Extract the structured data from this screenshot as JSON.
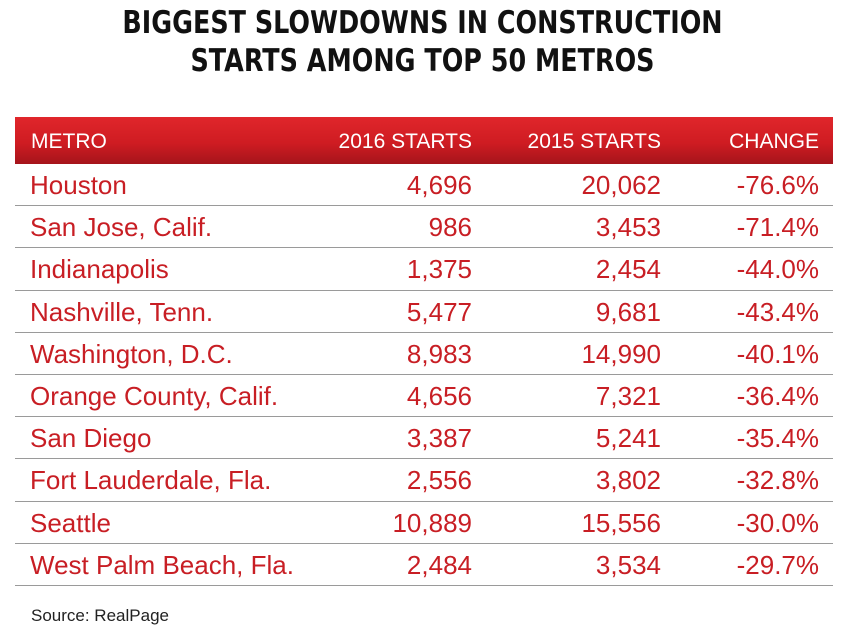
{
  "chart_data": {
    "type": "table",
    "title_lines": [
      "BIGGEST SLOWDOWNS IN CONSTRUCTION",
      "STARTS AMONG TOP 50 METROS"
    ],
    "columns": [
      "METRO",
      "2016 STARTS",
      "2015 STARTS",
      "CHANGE"
    ],
    "rows": [
      {
        "metro": "Houston",
        "starts_2016": "4,696",
        "starts_2015": "20,062",
        "change": "-76.6%"
      },
      {
        "metro": "San Jose, Calif.",
        "starts_2016": "986",
        "starts_2015": "3,453",
        "change": "-71.4%"
      },
      {
        "metro": "Indianapolis",
        "starts_2016": "1,375",
        "starts_2015": "2,454",
        "change": "-44.0%"
      },
      {
        "metro": "Nashville, Tenn.",
        "starts_2016": "5,477",
        "starts_2015": "9,681",
        "change": "-43.4%"
      },
      {
        "metro": "Washington, D.C.",
        "starts_2016": "8,983",
        "starts_2015": "14,990",
        "change": "-40.1%"
      },
      {
        "metro": "Orange County, Calif.",
        "starts_2016": "4,656",
        "starts_2015": "7,321",
        "change": "-36.4%"
      },
      {
        "metro": "San Diego",
        "starts_2016": "3,387",
        "starts_2015": "5,241",
        "change": "-35.4%"
      },
      {
        "metro": "Fort Lauderdale, Fla.",
        "starts_2016": "2,556",
        "starts_2015": "3,802",
        "change": "-32.8%"
      },
      {
        "metro": "Seattle",
        "starts_2016": "10,889",
        "starts_2015": "15,556",
        "change": "-30.0%"
      },
      {
        "metro": "West Palm Beach, Fla.",
        "starts_2016": "2,484",
        "starts_2015": "3,534",
        "change": "-29.7%"
      }
    ],
    "source": "Source: RealPage"
  },
  "colors": {
    "header_bg": "#cf1c22",
    "body_text": "#c81e24",
    "title_text": "#111111"
  }
}
